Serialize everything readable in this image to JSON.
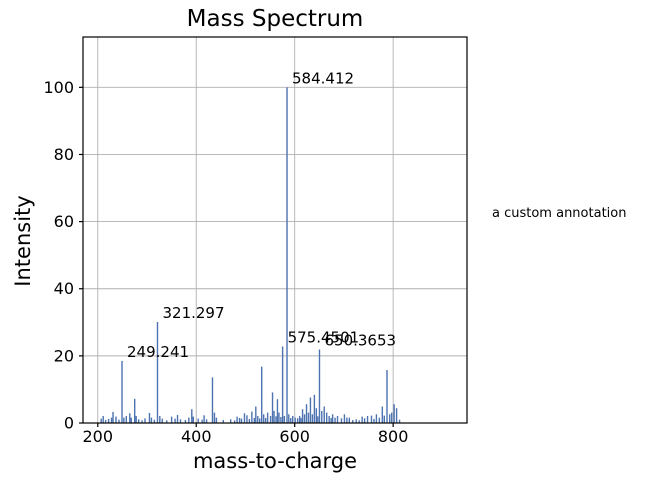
{
  "chart_data": {
    "type": "stem",
    "title": "Mass Spectrum",
    "xlabel": "mass-to-charge",
    "ylabel": "Intensity",
    "xlim": [
      170,
      950
    ],
    "ylim": [
      0,
      115
    ],
    "xticks": [
      200,
      400,
      600,
      800
    ],
    "yticks": [
      0,
      20,
      40,
      60,
      80,
      100
    ],
    "grid": true,
    "grid_color": "#b0b0b0",
    "spine_color": "#000000",
    "tick_text_color": "#000000",
    "line_color": "#4C72B0",
    "legend": null,
    "peaks": [
      [
        207,
        1.3
      ],
      [
        211,
        2.1
      ],
      [
        216,
        0.9
      ],
      [
        222,
        1.2
      ],
      [
        228,
        1.6
      ],
      [
        231,
        3.3
      ],
      [
        237,
        1.9
      ],
      [
        243,
        1.0
      ],
      [
        249.241,
        18.5
      ],
      [
        253,
        1.6
      ],
      [
        258,
        2.1
      ],
      [
        265,
        2.9
      ],
      [
        268,
        1.6
      ],
      [
        275,
        7.2
      ],
      [
        278,
        2.1
      ],
      [
        283,
        1.1
      ],
      [
        290,
        0.8
      ],
      [
        296,
        1.4
      ],
      [
        305,
        3.0
      ],
      [
        309,
        1.6
      ],
      [
        315,
        1.0
      ],
      [
        321.297,
        30.1
      ],
      [
        326,
        2.1
      ],
      [
        331,
        1.3
      ],
      [
        340,
        0.8
      ],
      [
        350,
        1.9
      ],
      [
        357,
        1.3
      ],
      [
        362,
        2.4
      ],
      [
        368,
        1.1
      ],
      [
        378,
        0.9
      ],
      [
        385,
        1.6
      ],
      [
        391,
        4.1
      ],
      [
        394,
        1.9
      ],
      [
        404,
        1.3
      ],
      [
        412,
        1.0
      ],
      [
        416,
        2.3
      ],
      [
        421,
        1.1
      ],
      [
        433,
        13.6
      ],
      [
        437,
        3.1
      ],
      [
        441,
        1.6
      ],
      [
        455,
        0.9
      ],
      [
        470,
        1.1
      ],
      [
        478,
        0.8
      ],
      [
        483,
        1.9
      ],
      [
        488,
        1.5
      ],
      [
        492,
        1.3
      ],
      [
        498,
        2.9
      ],
      [
        503,
        2.3
      ],
      [
        508,
        1.2
      ],
      [
        513,
        3.4
      ],
      [
        518,
        1.5
      ],
      [
        521,
        4.9
      ],
      [
        525,
        2.1
      ],
      [
        529,
        1.4
      ],
      [
        533,
        16.8
      ],
      [
        537,
        2.6
      ],
      [
        541,
        1.5
      ],
      [
        545,
        3.1
      ],
      [
        551,
        2.1
      ],
      [
        555,
        9.1
      ],
      [
        558,
        3.6
      ],
      [
        562,
        2.0
      ],
      [
        565,
        7.1
      ],
      [
        568,
        3.1
      ],
      [
        572,
        1.8
      ],
      [
        575.4501,
        22.8
      ],
      [
        579,
        2.1
      ],
      [
        584.412,
        100.0
      ],
      [
        588,
        2.6
      ],
      [
        592,
        1.5
      ],
      [
        596,
        2.1
      ],
      [
        601,
        1.6
      ],
      [
        606,
        1.4
      ],
      [
        610,
        2.1
      ],
      [
        613,
        1.5
      ],
      [
        616,
        4.1
      ],
      [
        620,
        2.6
      ],
      [
        624,
        5.6
      ],
      [
        628,
        3.1
      ],
      [
        632,
        7.6
      ],
      [
        636,
        2.6
      ],
      [
        640,
        8.4
      ],
      [
        644,
        4.4
      ],
      [
        647,
        2.0
      ],
      [
        650.3653,
        21.9
      ],
      [
        655,
        3.6
      ],
      [
        660,
        4.9
      ],
      [
        665,
        3.1
      ],
      [
        670,
        2.1
      ],
      [
        674,
        1.5
      ],
      [
        677,
        2.6
      ],
      [
        682,
        1.6
      ],
      [
        687,
        2.1
      ],
      [
        695,
        1.4
      ],
      [
        701,
        2.6
      ],
      [
        706,
        1.6
      ],
      [
        711,
        1.6
      ],
      [
        718,
        0.9
      ],
      [
        725,
        1.1
      ],
      [
        731,
        0.8
      ],
      [
        737,
        1.9
      ],
      [
        742,
        1.4
      ],
      [
        748,
        2.1
      ],
      [
        756,
        2.2
      ],
      [
        761,
        1.2
      ],
      [
        766,
        2.6
      ],
      [
        772,
        1.6
      ],
      [
        778,
        4.9
      ],
      [
        782,
        2.2
      ],
      [
        787.5,
        15.8
      ],
      [
        793,
        2.6
      ],
      [
        797,
        3.1
      ],
      [
        802,
        5.6
      ],
      [
        807,
        4.4
      ],
      [
        813,
        1.0
      ]
    ],
    "peak_labels": [
      {
        "text": "249.241",
        "mz": 249.241,
        "intensity": 18.5
      },
      {
        "text": "321.297",
        "mz": 321.297,
        "intensity": 30.1
      },
      {
        "text": "575.4501",
        "mz": 575.4501,
        "intensity": 22.8
      },
      {
        "text": "584.412",
        "mz": 584.412,
        "intensity": 100.0
      },
      {
        "text": "650.3653",
        "mz": 650.3653,
        "intensity": 21.9
      }
    ],
    "external_annotation": {
      "text": "a custom annotation"
    }
  }
}
